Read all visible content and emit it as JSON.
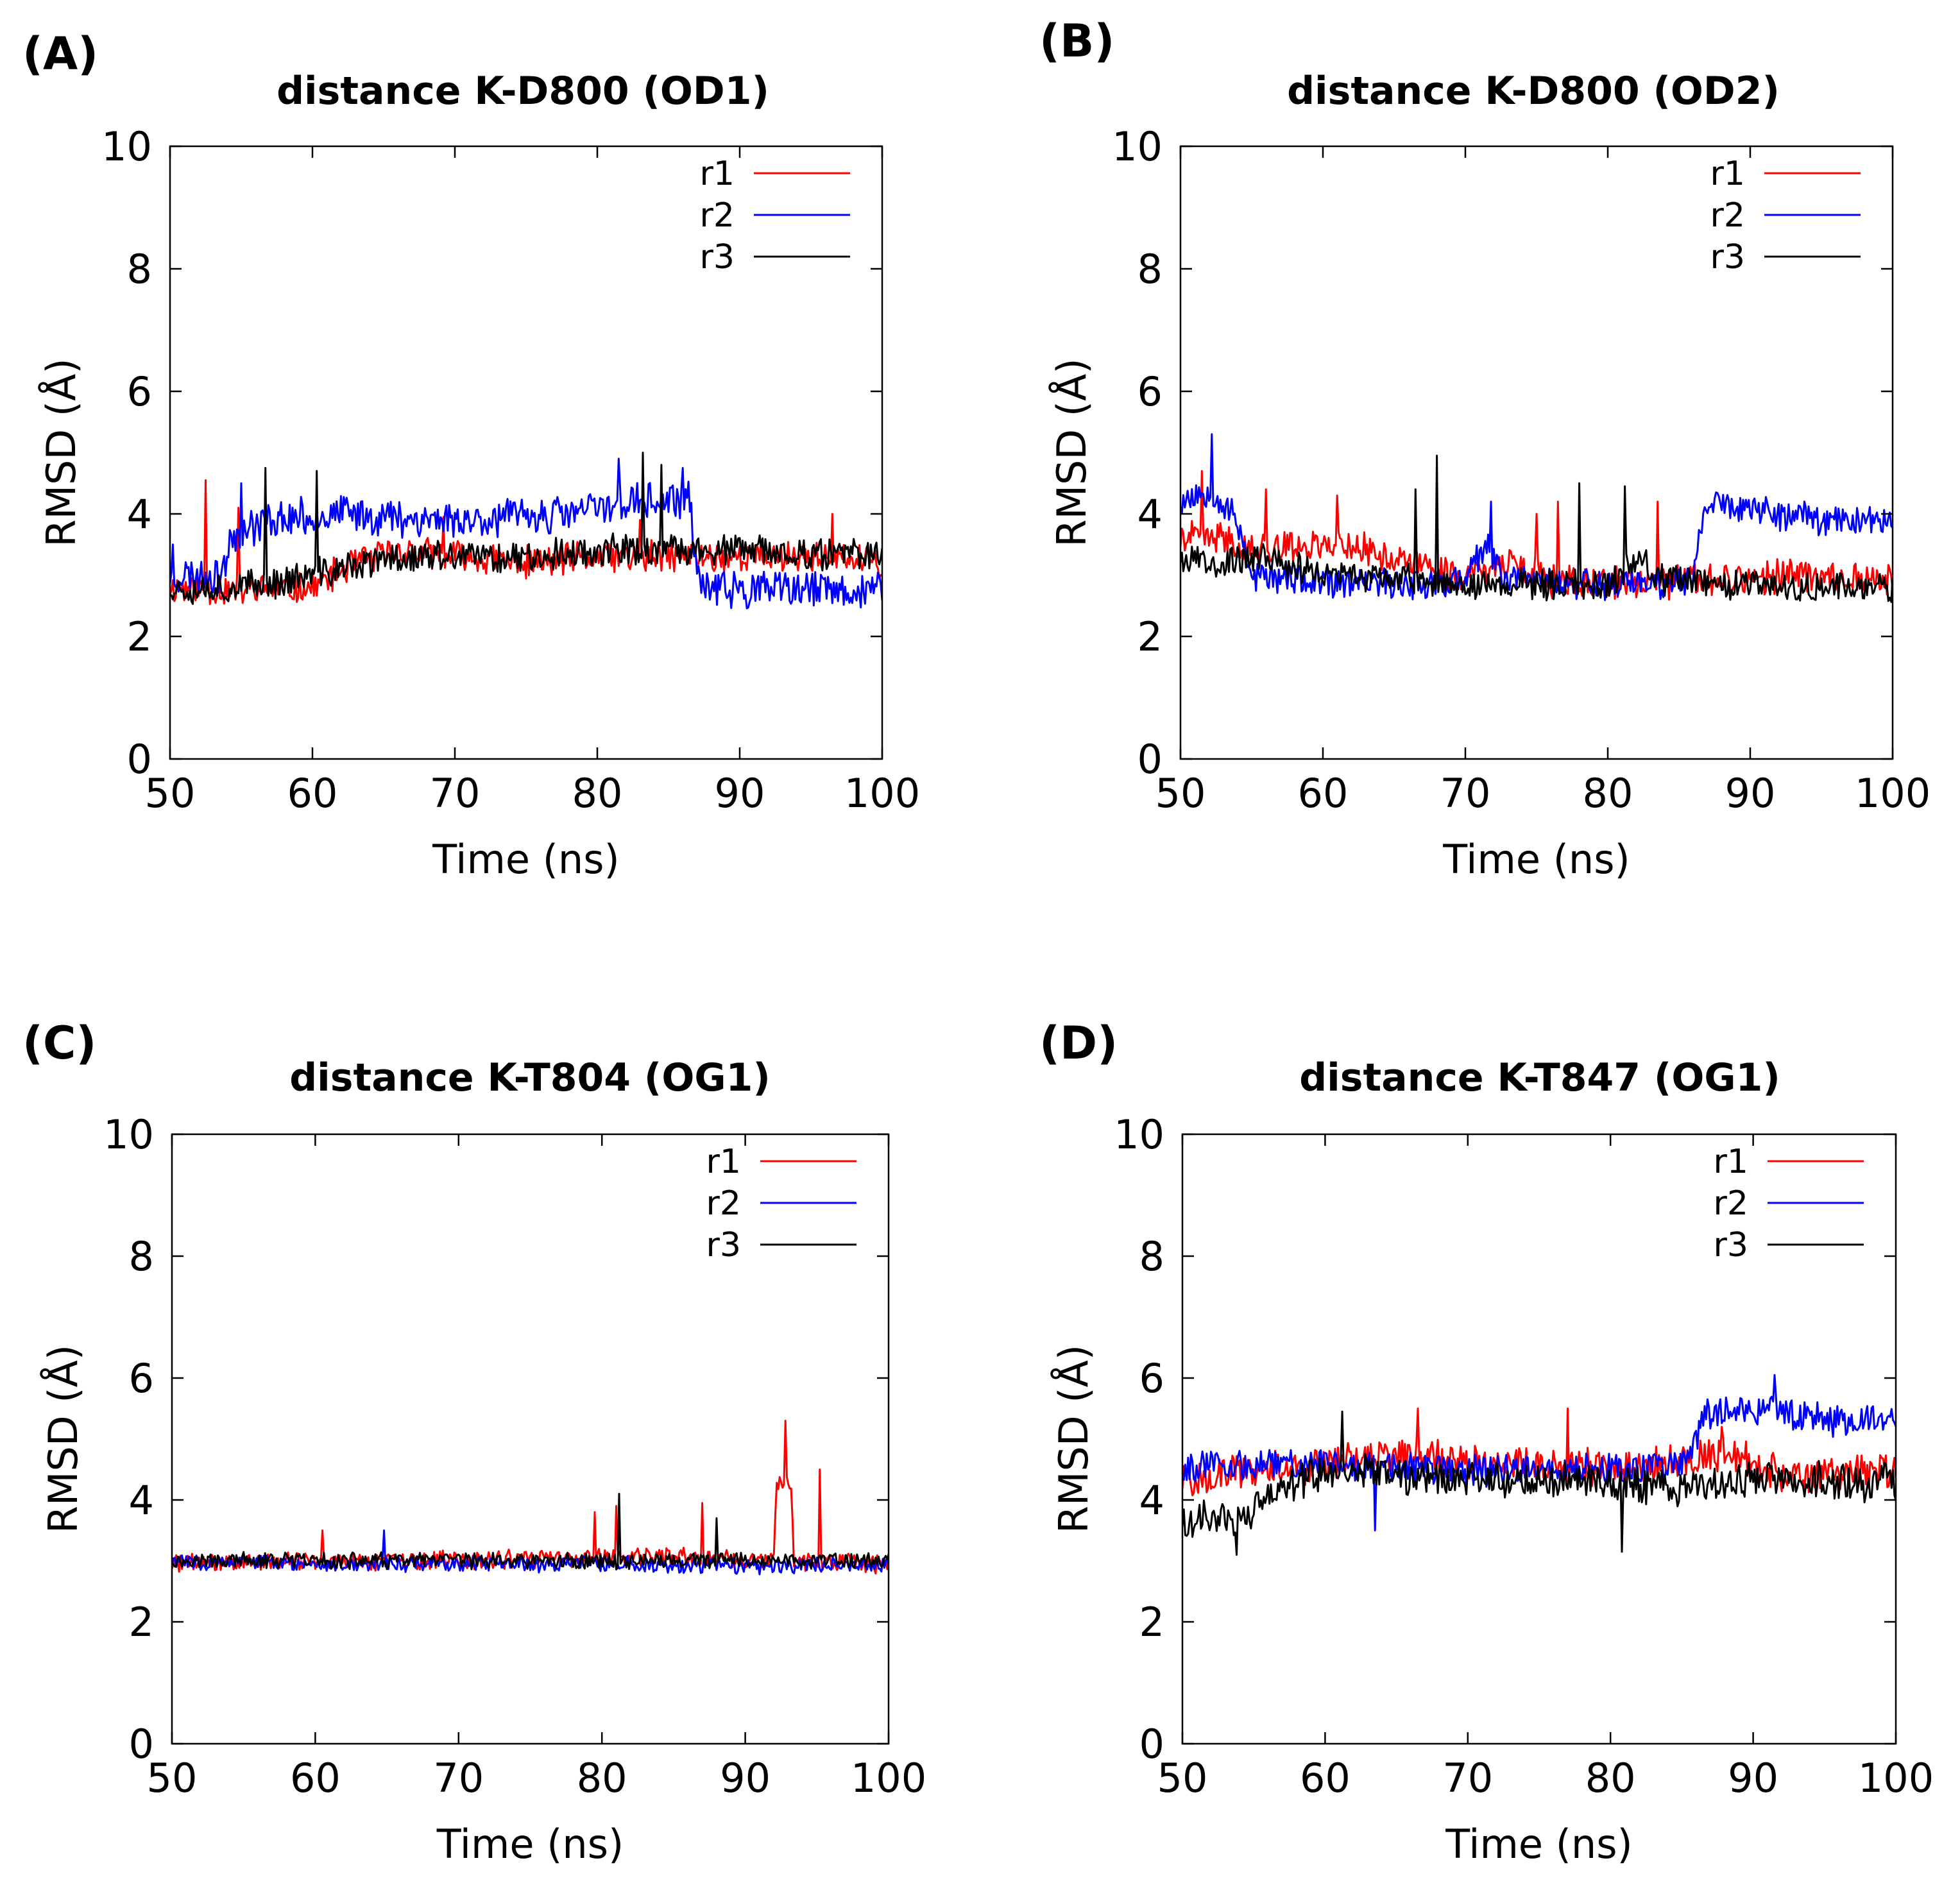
{
  "figure": {
    "panels": [
      {
        "label": "(A)"
      },
      {
        "label": "(B)"
      },
      {
        "label": "(C)"
      },
      {
        "label": "(D)"
      }
    ]
  },
  "colors": {
    "r1": "#ff0000",
    "r2": "#0000ff",
    "r3": "#000000"
  },
  "chart_data": [
    {
      "type": "line",
      "title": "distance K-D800 (OD1)",
      "xlabel": "Time (ns)",
      "ylabel": "RMSD (Å)",
      "xlim": [
        50,
        100
      ],
      "ylim": [
        0,
        10
      ],
      "xticks": [
        50,
        60,
        70,
        80,
        90,
        100
      ],
      "yticks": [
        0,
        2,
        4,
        6,
        8,
        10
      ],
      "legend_position": "top-right",
      "x_step": 0.1,
      "series": [
        {
          "name": "r1",
          "color": "#ff0000",
          "noise": 0.3,
          "seed": 11,
          "profile": [
            [
              50,
              2.8
            ],
            [
              55,
              2.75
            ],
            [
              60,
              2.8
            ],
            [
              63,
              3.2
            ],
            [
              66,
              3.4
            ],
            [
              70,
              3.3
            ],
            [
              75,
              3.2
            ],
            [
              80,
              3.3
            ],
            [
              85,
              3.3
            ],
            [
              90,
              3.3
            ],
            [
              95,
              3.3
            ],
            [
              100,
              3.2
            ]
          ],
          "spikes": [
            [
              52.5,
              4.55
            ],
            [
              54.8,
              4.1
            ],
            [
              69.2,
              3.95
            ],
            [
              83.0,
              3.9
            ],
            [
              96.5,
              4.0
            ]
          ]
        },
        {
          "name": "r2",
          "color": "#0000ff",
          "noise": 0.35,
          "seed": 23,
          "profile": [
            [
              50,
              3.0
            ],
            [
              53.5,
              3.0
            ],
            [
              54.5,
              3.7
            ],
            [
              57,
              3.9
            ],
            [
              62,
              4.0
            ],
            [
              70,
              3.9
            ],
            [
              78,
              4.0
            ],
            [
              82,
              4.2
            ],
            [
              86.5,
              4.2
            ],
            [
              87.2,
              2.8
            ],
            [
              90,
              2.75
            ],
            [
              100,
              2.75
            ]
          ],
          "spikes": [
            [
              50.2,
              3.5
            ],
            [
              55.0,
              4.5
            ],
            [
              81.5,
              4.9
            ],
            [
              86.0,
              4.75
            ]
          ]
        },
        {
          "name": "r3",
          "color": "#000000",
          "noise": 0.3,
          "seed": 37,
          "profile": [
            [
              50,
              2.8
            ],
            [
              55,
              2.8
            ],
            [
              58,
              2.9
            ],
            [
              62,
              3.1
            ],
            [
              66,
              3.3
            ],
            [
              70,
              3.3
            ],
            [
              75,
              3.3
            ],
            [
              80,
              3.4
            ],
            [
              85,
              3.4
            ],
            [
              90,
              3.4
            ],
            [
              95,
              3.35
            ],
            [
              100,
              3.3
            ]
          ],
          "spikes": [
            [
              56.7,
              4.75
            ],
            [
              60.3,
              4.7
            ],
            [
              83.2,
              5.0
            ],
            [
              84.5,
              4.8
            ]
          ]
        }
      ]
    },
    {
      "type": "line",
      "title": "distance K-D800 (OD2)",
      "xlabel": "Time (ns)",
      "ylabel": "RMSD (Å)",
      "xlim": [
        50,
        100
      ],
      "ylim": [
        0,
        10
      ],
      "xticks": [
        50,
        60,
        70,
        80,
        90,
        100
      ],
      "yticks": [
        0,
        2,
        4,
        6,
        8,
        10
      ],
      "legend_position": "top-right",
      "x_step": 0.1,
      "series": [
        {
          "name": "r1",
          "color": "#ff0000",
          "noise": 0.3,
          "seed": 41,
          "profile": [
            [
              50,
              3.6
            ],
            [
              53,
              3.6
            ],
            [
              55,
              3.4
            ],
            [
              58,
              3.5
            ],
            [
              62,
              3.5
            ],
            [
              66,
              3.2
            ],
            [
              70,
              3.0
            ],
            [
              73,
              3.2
            ],
            [
              76,
              2.9
            ],
            [
              80,
              2.85
            ],
            [
              86,
              2.9
            ],
            [
              90,
              2.95
            ],
            [
              95,
              3.0
            ],
            [
              100,
              2.9
            ]
          ],
          "spikes": [
            [
              51.5,
              4.7
            ],
            [
              56.0,
              4.4
            ],
            [
              61.0,
              4.3
            ],
            [
              75.0,
              4.0
            ],
            [
              76.5,
              4.2
            ],
            [
              83.5,
              4.2
            ]
          ]
        },
        {
          "name": "r2",
          "color": "#0000ff",
          "noise": 0.3,
          "seed": 53,
          "profile": [
            [
              50,
              4.2
            ],
            [
              52,
              4.4
            ],
            [
              54,
              3.9
            ],
            [
              55,
              3.0
            ],
            [
              60,
              2.85
            ],
            [
              70,
              2.9
            ],
            [
              71.5,
              3.5
            ],
            [
              72.5,
              3.0
            ],
            [
              80,
              2.85
            ],
            [
              86,
              2.9
            ],
            [
              86.8,
              4.2
            ],
            [
              92,
              4.0
            ],
            [
              96,
              3.9
            ],
            [
              100,
              3.9
            ]
          ],
          "spikes": [
            [
              52.2,
              5.3
            ],
            [
              71.8,
              4.2
            ]
          ]
        },
        {
          "name": "r3",
          "color": "#000000",
          "noise": 0.28,
          "seed": 67,
          "profile": [
            [
              50,
              3.3
            ],
            [
              53,
              3.2
            ],
            [
              56,
              3.3
            ],
            [
              60,
              3.0
            ],
            [
              65,
              2.95
            ],
            [
              70,
              2.85
            ],
            [
              75,
              2.85
            ],
            [
              80,
              2.85
            ],
            [
              82,
              3.3
            ],
            [
              84,
              2.9
            ],
            [
              90,
              2.8
            ],
            [
              100,
              2.8
            ]
          ],
          "spikes": [
            [
              66.5,
              4.4
            ],
            [
              68.0,
              4.95
            ],
            [
              78.0,
              4.5
            ],
            [
              81.2,
              4.45
            ]
          ]
        }
      ]
    },
    {
      "type": "line",
      "title": "distance K-T804 (OG1)",
      "xlabel": "Time (ns)",
      "ylabel": "RMSD (Å)",
      "xlim": [
        50,
        100
      ],
      "ylim": [
        0,
        10
      ],
      "xticks": [
        50,
        60,
        70,
        80,
        90,
        100
      ],
      "yticks": [
        0,
        2,
        4,
        6,
        8,
        10
      ],
      "legend_position": "top-right",
      "x_step": 0.1,
      "series": [
        {
          "name": "r1",
          "color": "#ff0000",
          "noise": 0.18,
          "seed": 71,
          "profile": [
            [
              50,
              2.95
            ],
            [
              60,
              3.0
            ],
            [
              70,
              3.0
            ],
            [
              80,
              3.05
            ],
            [
              88,
              3.05
            ],
            [
              92,
              3.0
            ],
            [
              92.2,
              4.3
            ],
            [
              93.2,
              4.3
            ],
            [
              93.4,
              3.0
            ],
            [
              100,
              2.95
            ]
          ],
          "spikes": [
            [
              60.5,
              3.5
            ],
            [
              79.5,
              3.8
            ],
            [
              81.0,
              3.9
            ],
            [
              87.0,
              3.95
            ],
            [
              92.8,
              5.3
            ],
            [
              95.2,
              4.5
            ]
          ]
        },
        {
          "name": "r2",
          "color": "#0000ff",
          "noise": 0.15,
          "seed": 83,
          "profile": [
            [
              50,
              3.0
            ],
            [
              60,
              2.95
            ],
            [
              70,
              2.95
            ],
            [
              80,
              2.95
            ],
            [
              90,
              2.9
            ],
            [
              100,
              2.95
            ]
          ],
          "spikes": [
            [
              64.8,
              3.5
            ]
          ]
        },
        {
          "name": "r3",
          "color": "#000000",
          "noise": 0.15,
          "seed": 97,
          "profile": [
            [
              50,
              3.0
            ],
            [
              60,
              3.0
            ],
            [
              70,
              3.0
            ],
            [
              80,
              3.0
            ],
            [
              90,
              3.0
            ],
            [
              100,
              3.0
            ]
          ],
          "spikes": [
            [
              81.2,
              4.1
            ],
            [
              88.0,
              3.7
            ]
          ]
        }
      ]
    },
    {
      "type": "line",
      "title": "distance K-T847 (OG1)",
      "xlabel": "Time (ns)",
      "ylabel": "RMSD (Å)",
      "xlim": [
        50,
        100
      ],
      "ylim": [
        0,
        10
      ],
      "xticks": [
        50,
        60,
        70,
        80,
        90,
        100
      ],
      "yticks": [
        0,
        2,
        4,
        6,
        8,
        10
      ],
      "legend_position": "top-right",
      "x_step": 0.1,
      "series": [
        {
          "name": "r1",
          "color": "#ff0000",
          "noise": 0.35,
          "seed": 101,
          "profile": [
            [
              50,
              4.3
            ],
            [
              55,
              4.5
            ],
            [
              60,
              4.6
            ],
            [
              66,
              4.8
            ],
            [
              70,
              4.6
            ],
            [
              75,
              4.6
            ],
            [
              80,
              4.5
            ],
            [
              85,
              4.6
            ],
            [
              88,
              4.8
            ],
            [
              92,
              4.4
            ],
            [
              100,
              4.5
            ]
          ],
          "spikes": [
            [
              66.5,
              5.5
            ],
            [
              77.0,
              5.5
            ],
            [
              87.8,
              5.2
            ]
          ]
        },
        {
          "name": "r2",
          "color": "#0000ff",
          "noise": 0.3,
          "seed": 113,
          "profile": [
            [
              50,
              4.5
            ],
            [
              55,
              4.6
            ],
            [
              60,
              4.6
            ],
            [
              70,
              4.5
            ],
            [
              80,
              4.5
            ],
            [
              85.5,
              4.6
            ],
            [
              86.5,
              5.4
            ],
            [
              91,
              5.5
            ],
            [
              95,
              5.3
            ],
            [
              100,
              5.3
            ]
          ],
          "spikes": [
            [
              91.5,
              6.05
            ],
            [
              63.5,
              3.5
            ]
          ]
        },
        {
          "name": "r3",
          "color": "#000000",
          "noise": 0.35,
          "seed": 127,
          "profile": [
            [
              50,
              3.7
            ],
            [
              54,
              3.7
            ],
            [
              57,
              4.2
            ],
            [
              60,
              4.5
            ],
            [
              65,
              4.4
            ],
            [
              70,
              4.3
            ],
            [
              75,
              4.3
            ],
            [
              80,
              4.3
            ],
            [
              85,
              4.2
            ],
            [
              90,
              4.3
            ],
            [
              100,
              4.3
            ]
          ],
          "spikes": [
            [
              61.2,
              5.45
            ],
            [
              53.8,
              3.1
            ],
            [
              80.8,
              3.15
            ]
          ]
        }
      ]
    }
  ]
}
